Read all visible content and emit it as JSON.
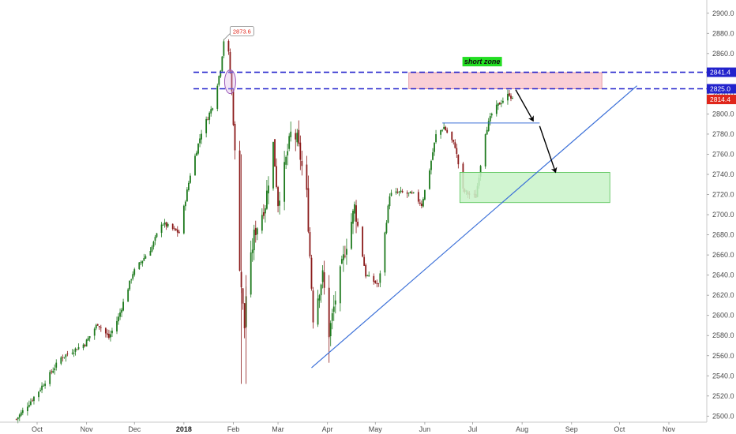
{
  "chart_data": {
    "type": "candlestick",
    "ylim": [
      2494,
      2910
    ],
    "y_ticks": [
      2500,
      2520,
      2540,
      2560,
      2580,
      2600,
      2620,
      2640,
      2660,
      2680,
      2700,
      2720,
      2740,
      2760,
      2780,
      2800,
      2820,
      2840,
      2860,
      2880,
      2900
    ],
    "y_tick_labels": [
      "2500.0",
      "2520.0",
      "2540.0",
      "2560.0",
      "2580.0",
      "2600.0",
      "2620.0",
      "2640.0",
      "2660.0",
      "2680.0",
      "2700.0",
      "2720.0",
      "2740.0",
      "2760.0",
      "2780.0",
      "2800.0",
      "2820.0",
      "2840.0",
      "2860.0",
      "2880.0",
      "2900.0"
    ],
    "x_ticks": [
      {
        "label": "Oct",
        "date": "2017-10-01"
      },
      {
        "label": "Nov",
        "date": "2017-11-01"
      },
      {
        "label": "Dec",
        "date": "2017-12-01"
      },
      {
        "label": "2018",
        "date": "2018-01-01",
        "bold": true
      },
      {
        "label": "Feb",
        "date": "2018-02-01"
      },
      {
        "label": "Mar",
        "date": "2018-03-01"
      },
      {
        "label": "Apr",
        "date": "2018-04-01"
      },
      {
        "label": "May",
        "date": "2018-05-01"
      },
      {
        "label": "Jun",
        "date": "2018-06-01"
      },
      {
        "label": "Jul",
        "date": "2018-07-01"
      },
      {
        "label": "Aug",
        "date": "2018-08-01"
      },
      {
        "label": "Sep",
        "date": "2018-09-01"
      },
      {
        "label": "Oct",
        "date": "2018-10-01"
      },
      {
        "label": "Nov",
        "date": "2018-11-01"
      }
    ],
    "price_path": [
      [
        "2017-09-18",
        2497
      ],
      [
        "2017-10-02",
        2525
      ],
      [
        "2017-10-16",
        2558
      ],
      [
        "2017-10-31",
        2572
      ],
      [
        "2017-11-08",
        2592
      ],
      [
        "2017-11-15",
        2578
      ],
      [
        "2017-11-21",
        2598
      ],
      [
        "2017-11-30",
        2642
      ],
      [
        "2017-12-12",
        2668
      ],
      [
        "2017-12-18",
        2692
      ],
      [
        "2017-12-29",
        2682
      ],
      [
        "2018-01-05",
        2740
      ],
      [
        "2018-01-12",
        2782
      ],
      [
        "2018-01-19",
        2808
      ],
      [
        "2018-01-24",
        2845
      ],
      [
        "2018-01-26",
        2873
      ],
      [
        "2018-01-29",
        2860
      ],
      [
        "2018-01-31",
        2822
      ],
      [
        "2018-02-02",
        2760
      ],
      [
        "2018-02-05",
        2650
      ],
      [
        "2018-02-08",
        2588
      ],
      [
        "2018-02-09",
        2620
      ],
      [
        "2018-02-14",
        2680
      ],
      [
        "2018-02-21",
        2710
      ],
      [
        "2018-02-26",
        2770
      ],
      [
        "2018-03-01",
        2712
      ],
      [
        "2018-03-09",
        2780
      ],
      [
        "2018-03-13",
        2775
      ],
      [
        "2018-03-19",
        2720
      ],
      [
        "2018-03-23",
        2598
      ],
      [
        "2018-03-29",
        2640
      ],
      [
        "2018-04-02",
        2582
      ],
      [
        "2018-04-09",
        2642
      ],
      [
        "2018-04-18",
        2708
      ],
      [
        "2018-04-25",
        2640
      ],
      [
        "2018-05-03",
        2630
      ],
      [
        "2018-05-10",
        2720
      ],
      [
        "2018-05-16",
        2722
      ],
      [
        "2018-05-25",
        2720
      ],
      [
        "2018-05-30",
        2710
      ],
      [
        "2018-06-04",
        2745
      ],
      [
        "2018-06-08",
        2779
      ],
      [
        "2018-06-13",
        2787
      ],
      [
        "2018-06-20",
        2768
      ],
      [
        "2018-06-25",
        2724
      ],
      [
        "2018-06-29",
        2720
      ],
      [
        "2018-07-03",
        2718
      ],
      [
        "2018-07-09",
        2782
      ],
      [
        "2018-07-13",
        2800
      ],
      [
        "2018-07-17",
        2809
      ],
      [
        "2018-07-24",
        2820
      ],
      [
        "2018-07-26",
        2814
      ]
    ],
    "current_price": 2814.4,
    "annotations": {
      "peak_callout": {
        "label": "2873.6",
        "date": "2018-01-26",
        "value": 2873.6
      },
      "resistance_upper": {
        "value": 2841.4,
        "label": "2841.4"
      },
      "resistance_lower": {
        "value": 2825.0,
        "label": "2825.0"
      },
      "last_price_label": "2814.4",
      "short_zone": {
        "label": "short zone",
        "from": "2018-05-22",
        "to": "2018-09-20",
        "low": 2825,
        "high": 2841
      },
      "support_box": {
        "from": "2018-06-23",
        "to": "2018-09-25",
        "low": 2712,
        "high": 2742
      },
      "horizontal_level": {
        "from": "2018-06-12",
        "to": "2018-08-12",
        "value": 2791
      },
      "trendline": {
        "from": [
          "2018-03-22",
          2548
        ],
        "to": [
          "2018-10-12",
          2828
        ]
      },
      "arrows": [
        {
          "from": [
            "2018-07-28",
            2824
          ],
          "to": [
            "2018-08-08",
            2793
          ]
        },
        {
          "from": [
            "2018-08-12",
            2788
          ],
          "to": [
            "2018-08-22",
            2742
          ]
        }
      ]
    },
    "colors": {
      "up": "#1e7a1e",
      "down": "#8b1a1a",
      "resistance": "#2222cc",
      "trendline": "#3a6fd8",
      "last_price": "#e0261b",
      "short_zone_fill": "#f9c7cf",
      "support_fill": "#c9f3c9",
      "zone_label_bg": "#22dd22"
    }
  }
}
